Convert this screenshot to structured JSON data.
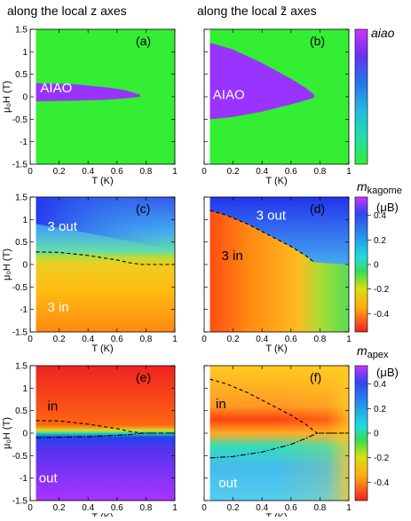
{
  "header": {
    "left": "along the local z axes",
    "right": "along the local z̃ axes"
  },
  "axes": {
    "x_label": "T (K)",
    "y_label": "μ₀H (T)",
    "x_ticks": [
      "0",
      "0.2",
      "0.4",
      "0.6",
      "0.8",
      "1"
    ],
    "y_ticks": [
      "1.5",
      "1",
      "0.5",
      "0",
      "-0.5",
      "-1",
      "-1.5"
    ],
    "xlim": [
      0,
      1
    ],
    "ylim": [
      -1.5,
      1.5
    ]
  },
  "colorbars": [
    {
      "label": "aiao",
      "unit": "",
      "ticks": []
    },
    {
      "label": "m_kagome",
      "label_main": "m",
      "label_sub": "kagome",
      "unit": "(μB)",
      "ticks": [
        "0.4",
        "0.2",
        "0",
        "-0.2",
        "-0.4"
      ]
    },
    {
      "label": "m_apex",
      "label_main": "m",
      "label_sub": "apex",
      "unit": "(μB)",
      "ticks": [
        "0.4",
        "0.2",
        "0",
        "-0.2",
        "-0.4"
      ]
    }
  ],
  "chart_data": [
    {
      "type": "heatmap",
      "panel": "(a)",
      "quantity": "aiao",
      "xlim": [
        0,
        1
      ],
      "ylim": [
        -1.5,
        1.5
      ],
      "background_color": "#33ee33",
      "regions": [
        {
          "label": "AIAO",
          "color": "#9933ff",
          "top": [
            [
              0.04,
              0.3
            ],
            [
              0.3,
              0.28
            ],
            [
              0.5,
              0.22
            ],
            [
              0.65,
              0.15
            ],
            [
              0.76,
              0.05
            ]
          ],
          "bottom": [
            [
              0.04,
              -0.1
            ],
            [
              0.3,
              -0.09
            ],
            [
              0.5,
              -0.07
            ],
            [
              0.65,
              -0.04
            ],
            [
              0.76,
              0.0
            ]
          ]
        }
      ],
      "annotations": []
    },
    {
      "type": "heatmap",
      "panel": "(b)",
      "quantity": "aiao",
      "xlim": [
        0,
        1
      ],
      "ylim": [
        -1.5,
        1.5
      ],
      "background_color": "#33ee33",
      "regions": [
        {
          "label": "AIAO",
          "color": "#9933ff",
          "top": [
            [
              0.04,
              1.2
            ],
            [
              0.2,
              1.05
            ],
            [
              0.4,
              0.75
            ],
            [
              0.6,
              0.4
            ],
            [
              0.7,
              0.2
            ],
            [
              0.76,
              0.05
            ]
          ],
          "bottom": [
            [
              0.04,
              -0.5
            ],
            [
              0.2,
              -0.45
            ],
            [
              0.4,
              -0.33
            ],
            [
              0.6,
              -0.17
            ],
            [
              0.7,
              -0.08
            ],
            [
              0.76,
              -0.02
            ]
          ]
        }
      ],
      "annotations": []
    },
    {
      "type": "heatmap",
      "panel": "(c)",
      "quantity": "m_kagome",
      "xlim": [
        0,
        1
      ],
      "ylim": [
        -1.5,
        1.5
      ],
      "regions": [
        {
          "label": "3 out"
        },
        {
          "label": "3 in"
        }
      ],
      "annotations": [
        {
          "style": "dashed",
          "points": [
            [
              0.04,
              0.28
            ],
            [
              0.2,
              0.27
            ],
            [
              0.4,
              0.2
            ],
            [
              0.6,
              0.1
            ],
            [
              0.7,
              0.03
            ],
            [
              0.78,
              0.0
            ],
            [
              1.0,
              0.0
            ]
          ]
        }
      ]
    },
    {
      "type": "heatmap",
      "panel": "(d)",
      "quantity": "m_kagome",
      "xlim": [
        0,
        1
      ],
      "ylim": [
        -1.5,
        1.5
      ],
      "regions": [
        {
          "label": "3 out"
        },
        {
          "label": "3 in"
        }
      ],
      "annotations": [
        {
          "style": "dashed",
          "points": [
            [
              0.04,
              1.2
            ],
            [
              0.15,
              1.1
            ],
            [
              0.3,
              0.9
            ],
            [
              0.45,
              0.65
            ],
            [
              0.6,
              0.4
            ],
            [
              0.7,
              0.2
            ],
            [
              0.76,
              0.05
            ]
          ]
        }
      ]
    },
    {
      "type": "heatmap",
      "panel": "(e)",
      "quantity": "m_apex",
      "xlim": [
        0,
        1
      ],
      "ylim": [
        -1.5,
        1.5
      ],
      "regions": [
        {
          "label": "in"
        },
        {
          "label": "out"
        }
      ],
      "annotations": [
        {
          "style": "dashed",
          "points": [
            [
              0.04,
              0.28
            ],
            [
              0.2,
              0.27
            ],
            [
              0.4,
              0.2
            ],
            [
              0.6,
              0.1
            ],
            [
              0.7,
              0.03
            ],
            [
              0.78,
              0.0
            ],
            [
              1.0,
              0.0
            ]
          ]
        },
        {
          "style": "dash-dot",
          "points": [
            [
              0.04,
              -0.1
            ],
            [
              0.4,
              -0.08
            ],
            [
              0.7,
              -0.03
            ],
            [
              0.78,
              0.0
            ],
            [
              1.0,
              0.0
            ]
          ]
        }
      ]
    },
    {
      "type": "heatmap",
      "panel": "(f)",
      "quantity": "m_apex",
      "xlim": [
        0,
        1
      ],
      "ylim": [
        -1.5,
        1.5
      ],
      "regions": [
        {
          "label": "in"
        },
        {
          "label": "out"
        }
      ],
      "annotations": [
        {
          "style": "dashed",
          "points": [
            [
              0.04,
              1.2
            ],
            [
              0.15,
              1.1
            ],
            [
              0.3,
              0.9
            ],
            [
              0.45,
              0.65
            ],
            [
              0.6,
              0.4
            ],
            [
              0.7,
              0.2
            ],
            [
              0.78,
              0.0
            ],
            [
              1.0,
              0.0
            ]
          ]
        },
        {
          "style": "dash-dot",
          "points": [
            [
              0.04,
              -0.55
            ],
            [
              0.2,
              -0.52
            ],
            [
              0.4,
              -0.42
            ],
            [
              0.6,
              -0.25
            ],
            [
              0.7,
              -0.12
            ],
            [
              0.78,
              0.0
            ],
            [
              1.0,
              0.0
            ]
          ]
        }
      ]
    }
  ]
}
